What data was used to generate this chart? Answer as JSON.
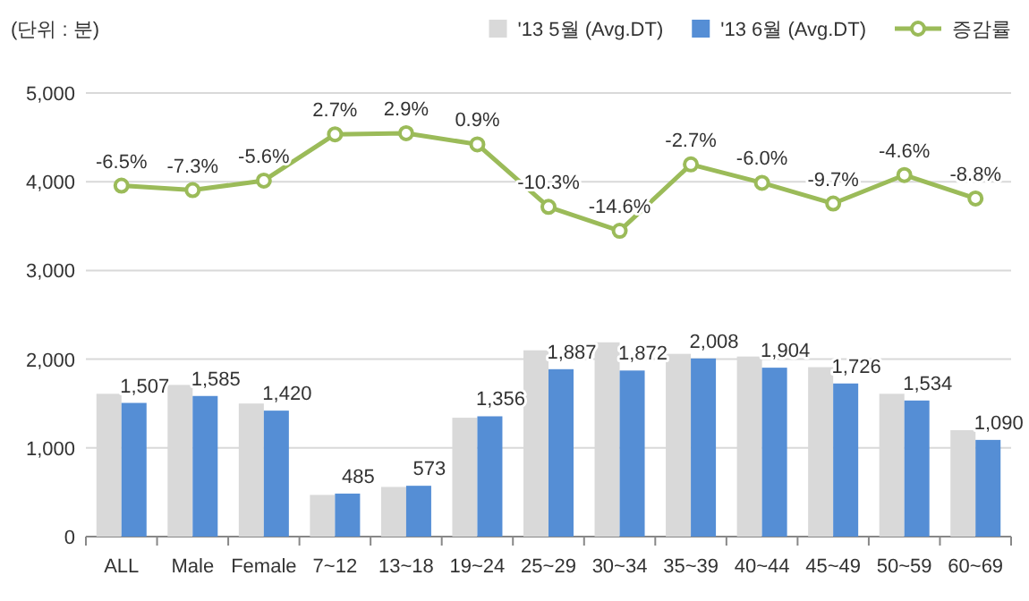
{
  "chart_data": {
    "type": "bar",
    "ylabel": "(단위 : 분)",
    "categories": [
      "ALL",
      "Male",
      "Female",
      "7~12",
      "13~18",
      "19~24",
      "25~29",
      "30~34",
      "35~39",
      "40~44",
      "45~49",
      "50~59",
      "60~69"
    ],
    "series": [
      {
        "name": "'13 5월 (Avg.DT)",
        "color": "#d9d9d9",
        "values": [
          1610,
          1710,
          1500,
          470,
          560,
          1340,
          2100,
          2190,
          2060,
          2030,
          1910,
          1610,
          1200
        ]
      },
      {
        "name": "'13 6월 (Avg.DT)",
        "color": "#558ed5",
        "values": [
          1507,
          1585,
          1420,
          485,
          573,
          1356,
          1887,
          1872,
          2008,
          1904,
          1726,
          1534,
          1090
        ],
        "value_labels": [
          "1,507",
          "1,585",
          "1,420",
          "485",
          "573",
          "1,356",
          "1,887",
          "1,872",
          "2,008",
          "1,904",
          "1,726",
          "1,534",
          "1,090"
        ]
      },
      {
        "name": "증감률",
        "type": "line",
        "axis": "y2",
        "color": "#9bbb59",
        "marker": "circle",
        "values": [
          -6.5,
          -7.3,
          -5.6,
          2.7,
          2.9,
          0.9,
          -10.3,
          -14.6,
          -2.7,
          -6.0,
          -9.7,
          -4.6,
          -8.8
        ],
        "value_labels": [
          "-6.5%",
          "-7.3%",
          "-5.6%",
          "2.7%",
          "2.9%",
          "0.9%",
          "-10.3%",
          "-14.6%",
          "-2.7%",
          "-6.0%",
          "-9.7%",
          "-4.6%",
          "-8.8%"
        ]
      }
    ],
    "ylim": [
      0,
      5000
    ],
    "yticks": [
      0,
      {
        "value": 1000,
        "label": "1,000"
      },
      {
        "value": 2000,
        "label": "2,000"
      },
      {
        "value": 3000,
        "label": "3,000"
      },
      {
        "value": 4000,
        "label": "4,000"
      },
      {
        "value": 5000,
        "label": "5,000"
      }
    ],
    "y2lim": [
      -69.4,
      10.1
    ],
    "grid": "y",
    "legend": "top right"
  }
}
